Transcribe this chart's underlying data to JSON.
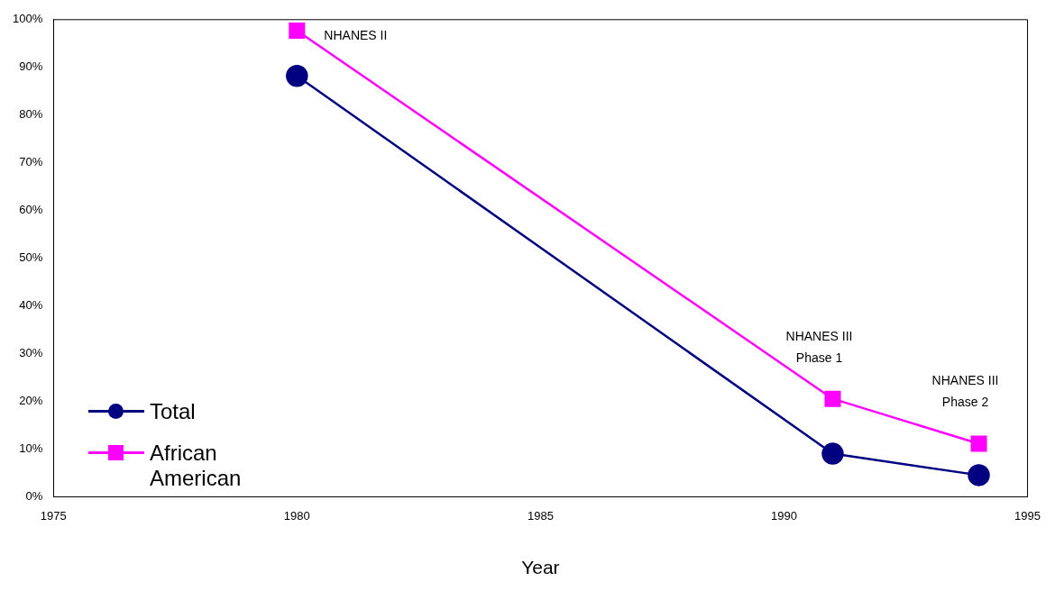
{
  "chart_data": {
    "type": "line",
    "xlabel": "Year",
    "x": [
      1980,
      1991,
      1994
    ],
    "series": [
      {
        "name": "Total",
        "color": "#000080",
        "marker": "circle",
        "values": [
          88.2,
          9,
          4.5
        ]
      },
      {
        "name": "African American",
        "color": "#ff00ff",
        "marker": "square",
        "values": [
          97.7,
          20.5,
          11.1
        ]
      }
    ],
    "xlim": [
      1975,
      1995
    ],
    "xticks": [
      1975,
      1980,
      1985,
      1990,
      1995
    ],
    "ylim": [
      0,
      100
    ],
    "yticks": [
      {
        "value": 0,
        "label": "0%"
      },
      {
        "value": 10,
        "label": "10%"
      },
      {
        "value": 20,
        "label": "20%"
      },
      {
        "value": 30,
        "label": "30%"
      },
      {
        "value": 40,
        "label": "40%"
      },
      {
        "value": 50,
        "label": "50%"
      },
      {
        "value": 60,
        "label": "60%"
      },
      {
        "value": 70,
        "label": "70%"
      },
      {
        "value": 80,
        "label": "80%"
      },
      {
        "value": 90,
        "label": "90%"
      },
      {
        "value": 100,
        "label": "100%"
      }
    ],
    "annotations": [
      {
        "text": "NHANES II",
        "x": 1980,
        "y": 97.7
      },
      {
        "text": "NHANES III\nPhase 1",
        "x": 1991,
        "y": 20.5
      },
      {
        "text": "NHANES III\nPhase 2",
        "x": 1994,
        "y": 11.1
      }
    ],
    "grid": false,
    "legend": "bottom left"
  }
}
